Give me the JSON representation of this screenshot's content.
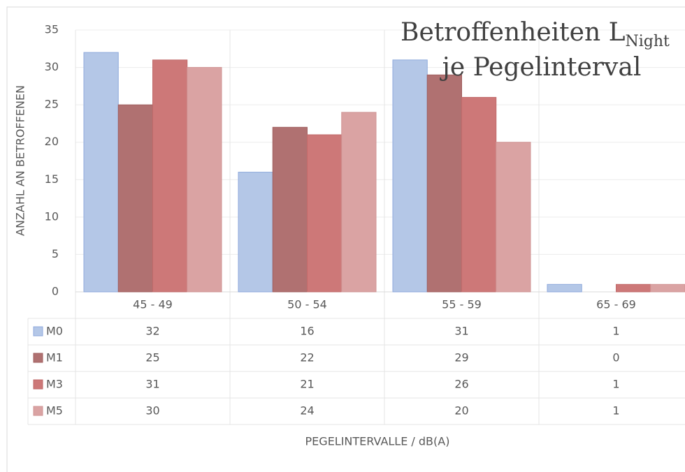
{
  "chart_data": {
    "type": "bar",
    "title": {
      "main": "Betroffenheiten L",
      "subscript": "Night",
      "line2": "je Pegelinterval"
    },
    "x_label": "PEGELINTERVALLE / dB(A)",
    "y_label": "ANZAHL AN BETROFFENEN",
    "categories": [
      "45 - 49",
      "50 - 54",
      "55 - 59",
      "65 - 69"
    ],
    "series": [
      {
        "name": "M0",
        "color": "#b4c7e7",
        "stroke": "#8faadc",
        "values": [
          32,
          16,
          31,
          1
        ]
      },
      {
        "name": "M1",
        "color": "#b07171",
        "stroke": "#a05f5f",
        "values": [
          25,
          22,
          29,
          0
        ]
      },
      {
        "name": "M3",
        "color": "#cd7878",
        "stroke": "#c06a6a",
        "values": [
          31,
          21,
          26,
          1
        ]
      },
      {
        "name": "M5",
        "color": "#daa3a3",
        "stroke": "#d09494",
        "values": [
          30,
          24,
          20,
          1
        ]
      }
    ],
    "ylim": [
      0,
      35
    ],
    "yticks": [
      0,
      5,
      10,
      15,
      20,
      25,
      30,
      35
    ],
    "grid": true,
    "data_table": true
  }
}
